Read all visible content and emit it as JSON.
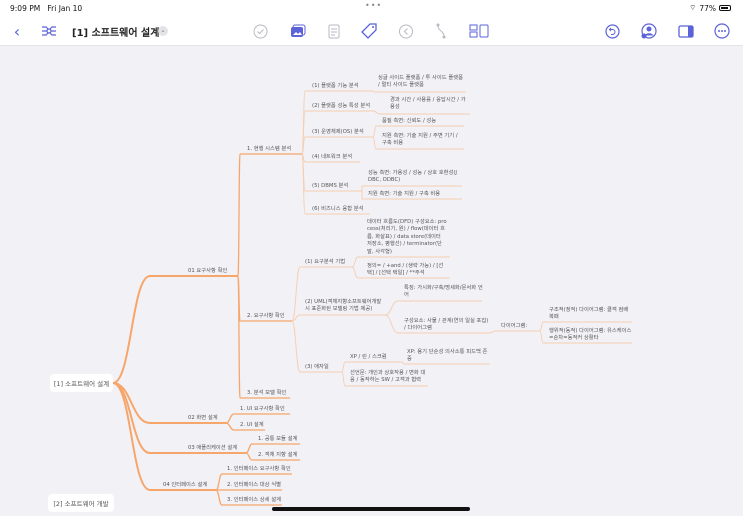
{
  "status_bar": {
    "time": "9:09 PM",
    "date": "Fri Jan 10",
    "battery": "77%"
  },
  "toolbar": {
    "title": "[1] 소프트웨어 설계",
    "icons": [
      "back-icon",
      "mindmap-icon",
      "check-icon",
      "image-icon",
      "note-icon",
      "tag-icon",
      "left-arrow-icon",
      "branch-icon",
      "layout-icon",
      "undo-icon",
      "collaborate-icon",
      "sidebar-icon",
      "more-icon"
    ]
  },
  "colors": {
    "accent": "#5a63d8",
    "branch": "#f7a66b",
    "leaf_line": "#f6cdb0",
    "background": "#f2f1f6"
  },
  "mindmap": {
    "root": "[1] 소프트웨어 설계",
    "root2": "[2] 소프트웨어 개발",
    "nodes": [
      {
        "id": "a01",
        "parent": "root",
        "text": "01 요구사항 확인"
      },
      {
        "id": "h1",
        "parent": "a01",
        "text": "1. 현행 시스템 분석"
      },
      {
        "id": "h1_1",
        "parent": "h1",
        "text": "(1) 플랫폼 기능 분석"
      },
      {
        "id": "h1_1a",
        "parent": "h1_1",
        "text": "싱글 사이드 플랫폼 / 투 사이드 플랫폼 / 멀티 사이드 플랫폼"
      },
      {
        "id": "h1_2",
        "parent": "h1",
        "text": "(2) 플랫폼 성능 특성 분석"
      },
      {
        "id": "h1_2a",
        "parent": "h1_2",
        "text": "경과 시간 / 사용률 / 응답시간 / 가용성"
      },
      {
        "id": "h1_3",
        "parent": "h1",
        "text": "(3) 운영체제(OS) 분석"
      },
      {
        "id": "h1_3a",
        "parent": "h1_3",
        "text": "품질 측면: 신뢰도 / 성능"
      },
      {
        "id": "h1_3b",
        "parent": "h1_3",
        "text": "지원 측면: 기술 지원 / 주변 기기 / 구축 비용"
      },
      {
        "id": "h1_4",
        "parent": "h1",
        "text": "(4) 네트워크 분석"
      },
      {
        "id": "h1_5",
        "parent": "h1",
        "text": "(5) DBMS 분석"
      },
      {
        "id": "h1_5a",
        "parent": "h1_5",
        "text": "성능 측면: 가용성 / 성능 / 상호 호환성(JDBC, ODBC)"
      },
      {
        "id": "h1_5b",
        "parent": "h1_5",
        "text": "지원 측면: 기술 지원 / 구축 비용"
      },
      {
        "id": "h1_6",
        "parent": "h1",
        "text": "(6) 비즈니스 융합 분석"
      },
      {
        "id": "h2",
        "parent": "a01",
        "text": "2. 요구사항 확인"
      },
      {
        "id": "h2_1",
        "parent": "h2",
        "text": "(1) 요구분석 기법"
      },
      {
        "id": "h2_1a",
        "parent": "h2_1",
        "text": "데이터 흐름도(DFD) 구성요소: process(처리기, 원) / flow(데이터 흐름, 화살표) / data store(데이터 저장소, 평행선) / terminator(단말, 사각형)"
      },
      {
        "id": "h2_1b",
        "parent": "h2_1",
        "text": "정의= / +and / (생략 가능) / [선택] / [선택 택일] / **주석"
      },
      {
        "id": "h2_2",
        "parent": "h2",
        "text": "(2) UML(객체지향소프트웨어개발시 표준화된 모델링 기법 제공)"
      },
      {
        "id": "h2_2a",
        "parent": "h2_2",
        "text": "특징: 가시화/구축/명세화/문서화 언어"
      },
      {
        "id": "h2_2b",
        "parent": "h2_2",
        "text": "구성요소: 사물 / 관계(연의 일실 포집) / 다이어그램"
      },
      {
        "id": "h2_2b1",
        "parent": "h2_2b",
        "text": "다이어그램:"
      },
      {
        "id": "h2_2b1a",
        "parent": "h2_2b1",
        "text": "구조적(정적) 다이어그램: 클객 컴배 복패"
      },
      {
        "id": "h2_2b1b",
        "parent": "h2_2b1",
        "text": "행위적(동적) 다이어그램: 유스케이스=순차=동적커 상활타"
      },
      {
        "id": "h2_3",
        "parent": "h2",
        "text": "(3) 애자일"
      },
      {
        "id": "h2_3a",
        "parent": "h2_3",
        "text": "XP / 린 / 스크럼"
      },
      {
        "id": "h2_3a1",
        "parent": "h2_3a",
        "text": "XP: 용기 단순성 의사소통 피드백 존중"
      },
      {
        "id": "h2_3b",
        "parent": "h2_3",
        "text": "선언문: 개인과 상호작용 / 변화 대응 / 동작하는 SW / 고객과 협력"
      },
      {
        "id": "h3",
        "parent": "a01",
        "text": "3. 분석 모델 확인"
      },
      {
        "id": "a02",
        "parent": "root",
        "text": "02 화면 설계"
      },
      {
        "id": "a02_1",
        "parent": "a02",
        "text": "1. UI 요구사항 확인"
      },
      {
        "id": "a02_2",
        "parent": "a02",
        "text": "2. UI 설계"
      },
      {
        "id": "a03",
        "parent": "root",
        "text": "03 애플리케이션 설계"
      },
      {
        "id": "a03_1",
        "parent": "a03",
        "text": "1. 공통 모듈 설계"
      },
      {
        "id": "a03_2",
        "parent": "a03",
        "text": "2. 객체 지향 설계"
      },
      {
        "id": "a04",
        "parent": "root",
        "text": "04 인터페이스 설계"
      },
      {
        "id": "a04_1",
        "parent": "a04",
        "text": "1. 인터페이스 요구사항 확인"
      },
      {
        "id": "a04_2",
        "parent": "a04",
        "text": "2. 인터페이스 대상 식별"
      },
      {
        "id": "a04_3",
        "parent": "a04",
        "text": "3. 인터페이스 상세 설계"
      }
    ]
  }
}
